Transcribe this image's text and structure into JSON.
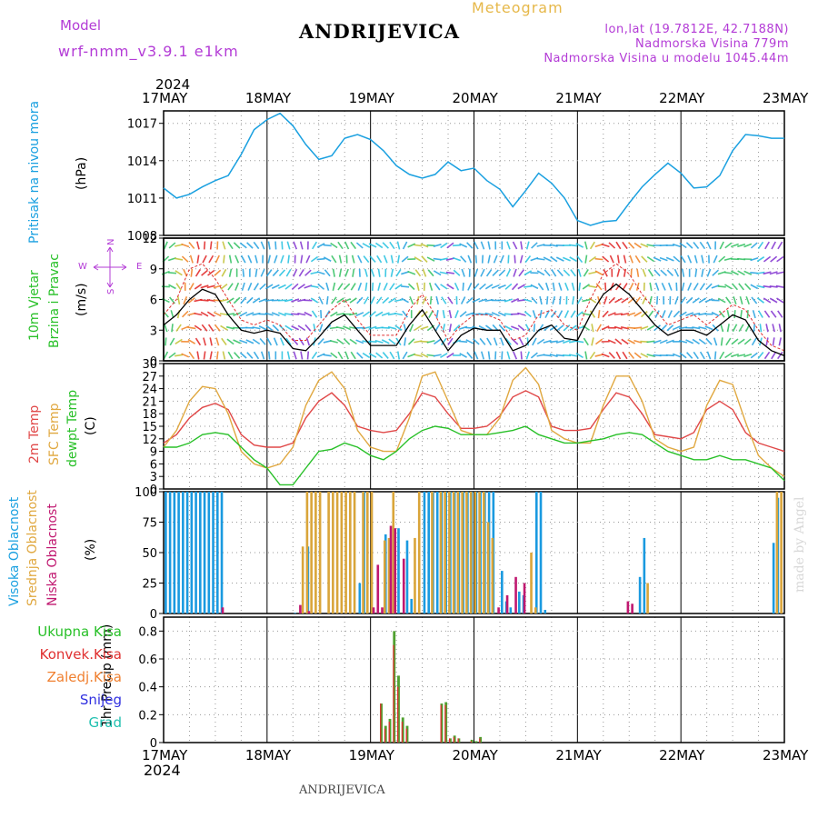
{
  "header": {
    "model_label": "Model",
    "model_name": "wrf-nmm_v3.9.1 e1km",
    "station": "ANDRIJEVICA",
    "meteogram": "Meteogram",
    "lonlat": "lon,lat (19.7812E, 42.7188N)",
    "elevation": "Nadmorska Visina 779m",
    "model_elevation": "Nadmorska Visina u modelu 1045.44m",
    "year_top": "2024",
    "year_bottom": "2024",
    "footer_station": "ANDRIJEVICA",
    "watermark": "made by Angel"
  },
  "colors": {
    "pressure": "#1aa0e0",
    "wind_speed": "#000000",
    "wind_gust": "#e03030",
    "temp2m": "#e04848",
    "sfc": "#e0a840",
    "dew": "#28c028",
    "high": "#1a9ae0",
    "mid": "#d9a53a",
    "low": "#c01870",
    "precip_total": "#50a030",
    "precip_conv": "#e03030"
  },
  "axis": {
    "day_labels": [
      "17MAY",
      "18MAY",
      "19MAY",
      "20MAY",
      "21MAY",
      "22MAY",
      "23MAY"
    ]
  },
  "panels": {
    "pressure": {
      "label": "Pritisak na nivou mora",
      "unit": "(hPa)"
    },
    "wind": {
      "label1": "10m Vjetar",
      "label2": "Brzina i Pravac",
      "unit": "(m/s)",
      "compass_n": "N",
      "compass_e": "E",
      "compass_w": "W",
      "compass_s": "S"
    },
    "temp": {
      "l1": "2m Temp",
      "l2": "SFC Temp",
      "l3": "dewpt Temp",
      "unit": "(C)"
    },
    "cloud": {
      "l1": "Visoka Oblacnost",
      "l2": "Srednja Oblacnost",
      "l3": "Niska Oblacnost",
      "unit": "(%)"
    },
    "precip": {
      "unit": "1hr Precip (mm)",
      "legend": [
        "Ukupna Kisa",
        "Konvek.Kisa",
        "Zaledj.Kisa",
        "Snijeg",
        "Grad"
      ],
      "legend_colors": [
        "#28c028",
        "#e03030",
        "#f08030",
        "#3030e0",
        "#20c0b0"
      ]
    }
  },
  "chart_data": [
    {
      "type": "line",
      "name": "pressure",
      "ylim": [
        1008,
        1018
      ],
      "yticks": [
        1008,
        1011,
        1014,
        1017
      ],
      "x": [
        0,
        3,
        6,
        9,
        12,
        15,
        18,
        21,
        24,
        27,
        30,
        33,
        36,
        39,
        42,
        45,
        48,
        51,
        54,
        57,
        60,
        63,
        66,
        69,
        72,
        75,
        78,
        81,
        84,
        87,
        90,
        93,
        96,
        99,
        102,
        105,
        108,
        111,
        114,
        117,
        120,
        123,
        126,
        129,
        132,
        135,
        138,
        141,
        144
      ],
      "values": [
        1011.8,
        1011.0,
        1011.3,
        1011.9,
        1012.4,
        1012.8,
        1014.5,
        1016.5,
        1017.3,
        1017.8,
        1016.8,
        1015.3,
        1014.1,
        1014.4,
        1015.8,
        1016.1,
        1015.7,
        1014.8,
        1013.6,
        1012.9,
        1012.6,
        1012.9,
        1013.9,
        1013.2,
        1013.4,
        1012.4,
        1011.7,
        1010.3,
        1011.6,
        1013.0,
        1012.2,
        1011.0,
        1009.2,
        1008.8,
        1009.1,
        1009.2,
        1010.6,
        1011.9,
        1012.9,
        1013.8,
        1013.0,
        1011.8,
        1011.9,
        1012.8,
        1014.8,
        1016.1,
        1016.0,
        1015.8,
        1015.8
      ]
    },
    {
      "type": "line",
      "name": "wind",
      "ylim": [
        0,
        12
      ],
      "yticks": [
        0,
        3,
        6,
        9,
        12
      ],
      "x": [
        0,
        3,
        6,
        9,
        12,
        15,
        18,
        21,
        24,
        27,
        30,
        33,
        36,
        39,
        42,
        45,
        48,
        51,
        54,
        57,
        60,
        63,
        66,
        69,
        72,
        75,
        78,
        81,
        84,
        87,
        90,
        93,
        96,
        99,
        102,
        105,
        108,
        111,
        114,
        117,
        120,
        123,
        126,
        129,
        132,
        135,
        138,
        141,
        144
      ],
      "speed": [
        3.5,
        4.5,
        6.0,
        7.0,
        6.5,
        4.5,
        3.0,
        2.7,
        3.0,
        2.7,
        1.2,
        1.0,
        2.3,
        3.8,
        4.5,
        3.0,
        1.5,
        1.5,
        1.5,
        3.5,
        5.0,
        3.0,
        1.0,
        2.5,
        3.2,
        3.0,
        3.0,
        1.0,
        1.5,
        3.0,
        3.5,
        2.2,
        2.0,
        4.5,
        6.5,
        7.5,
        6.5,
        5.0,
        3.5,
        2.5,
        3.0,
        3.0,
        2.5,
        3.5,
        4.5,
        4.0,
        2.0,
        1.0,
        0.5
      ],
      "gust": [
        4.5,
        6.0,
        9.0,
        9.5,
        8.0,
        6.0,
        4.0,
        3.5,
        4.0,
        3.5,
        2.0,
        2.0,
        3.5,
        5.0,
        6.0,
        4.0,
        2.5,
        2.5,
        2.5,
        5.0,
        6.5,
        4.5,
        2.0,
        3.5,
        4.5,
        4.5,
        4.0,
        2.0,
        2.5,
        4.5,
        5.0,
        3.5,
        3.0,
        6.0,
        8.5,
        9.5,
        8.5,
        6.5,
        5.0,
        3.5,
        4.0,
        4.5,
        3.5,
        4.5,
        5.5,
        5.0,
        3.0,
        1.5,
        1.0
      ]
    },
    {
      "type": "line",
      "name": "temperature",
      "ylim": [
        0,
        30
      ],
      "yticks": [
        0,
        3,
        6,
        9,
        12,
        15,
        18,
        21,
        24,
        27,
        30
      ],
      "x": [
        0,
        3,
        6,
        9,
        12,
        15,
        18,
        21,
        24,
        27,
        30,
        33,
        36,
        39,
        42,
        45,
        48,
        51,
        54,
        57,
        60,
        63,
        66,
        69,
        72,
        75,
        78,
        81,
        84,
        87,
        90,
        93,
        96,
        99,
        102,
        105,
        108,
        111,
        114,
        117,
        120,
        123,
        126,
        129,
        132,
        135,
        138,
        141,
        144
      ],
      "series": [
        {
          "name": "2m Temp",
          "values": [
            11,
            13,
            17,
            19.5,
            20.5,
            19,
            13,
            10.5,
            10,
            10,
            11,
            17,
            21,
            23,
            20,
            15,
            14,
            13.5,
            14,
            18,
            23,
            22,
            18,
            14.5,
            14.5,
            15,
            17.5,
            22,
            23.5,
            22,
            15,
            14,
            14,
            14.5,
            19,
            23,
            22,
            18,
            13,
            12.5,
            12,
            13.5,
            19,
            21,
            19,
            13.5,
            11,
            10,
            9
          ]
        },
        {
          "name": "SFC Temp",
          "values": [
            10,
            14,
            21,
            24.5,
            24,
            18,
            9,
            6,
            5,
            6,
            10,
            20,
            26,
            28,
            24,
            14,
            10,
            9,
            9,
            17,
            27,
            28,
            21,
            14,
            13,
            13,
            17,
            26,
            29,
            25,
            14,
            12,
            11,
            11,
            20,
            27,
            27,
            21,
            12,
            10,
            9,
            10,
            20,
            26,
            25,
            16,
            8,
            5,
            3
          ]
        },
        {
          "name": "dewpt Temp",
          "values": [
            10,
            10,
            11,
            13,
            13.5,
            13,
            10,
            7,
            5,
            1,
            1,
            5,
            9,
            9.5,
            11,
            10,
            8,
            7,
            9,
            12,
            14,
            15,
            14.5,
            13,
            13,
            13,
            13.5,
            14,
            15,
            13,
            12,
            11,
            11,
            11.5,
            12,
            13,
            13.5,
            13,
            11,
            9,
            8,
            7,
            7,
            8,
            7,
            7,
            6,
            5,
            2
          ]
        }
      ]
    },
    {
      "type": "bar",
      "name": "cloud",
      "ylim": [
        0,
        100
      ],
      "yticks": [
        0,
        25,
        50,
        75,
        100
      ],
      "bar_width_hours": 0.55,
      "high": [
        [
          0.5,
          100
        ],
        [
          1.5,
          100
        ],
        [
          2.5,
          100
        ],
        [
          3.5,
          100
        ],
        [
          4.5,
          100
        ],
        [
          5.5,
          100
        ],
        [
          6.5,
          100
        ],
        [
          7.5,
          100
        ],
        [
          8.5,
          100
        ],
        [
          9.5,
          100
        ],
        [
          10.5,
          100
        ],
        [
          11.5,
          100
        ],
        [
          12.5,
          100
        ],
        [
          13.5,
          100
        ],
        [
          30.5,
          0.5
        ],
        [
          33.5,
          55
        ],
        [
          45.5,
          25
        ],
        [
          46.5,
          100
        ],
        [
          51.5,
          65
        ],
        [
          54.5,
          70
        ],
        [
          56.5,
          60
        ],
        [
          57.5,
          12
        ],
        [
          60.5,
          100
        ],
        [
          61.5,
          100
        ],
        [
          62.5,
          100
        ],
        [
          63.5,
          100
        ],
        [
          64.5,
          100
        ],
        [
          65.5,
          100
        ],
        [
          66.5,
          100
        ],
        [
          67.5,
          100
        ],
        [
          68.5,
          100
        ],
        [
          69.5,
          100
        ],
        [
          70.5,
          100
        ],
        [
          71.5,
          100
        ],
        [
          72.5,
          100
        ],
        [
          73.5,
          100
        ],
        [
          74.5,
          100
        ],
        [
          75.5,
          100
        ],
        [
          76.5,
          100
        ],
        [
          78.5,
          35
        ],
        [
          79.5,
          10
        ],
        [
          80.5,
          5
        ],
        [
          82.5,
          18
        ],
        [
          83.5,
          15
        ],
        [
          86.5,
          100
        ],
        [
          87.5,
          100
        ],
        [
          88.5,
          3
        ],
        [
          110.5,
          30
        ],
        [
          111.5,
          62
        ],
        [
          141.5,
          58
        ],
        [
          142.5,
          95
        ]
      ],
      "mid": [
        [
          32.5,
          55
        ],
        [
          33.5,
          100
        ],
        [
          34.5,
          100
        ],
        [
          35.5,
          100
        ],
        [
          36.5,
          100
        ],
        [
          38.5,
          100
        ],
        [
          39.5,
          100
        ],
        [
          40.5,
          100
        ],
        [
          41.5,
          100
        ],
        [
          42.5,
          100
        ],
        [
          43.5,
          100
        ],
        [
          44.5,
          100
        ],
        [
          46.5,
          100
        ],
        [
          47.5,
          100
        ],
        [
          48.5,
          100
        ],
        [
          51.5,
          60
        ],
        [
          52.5,
          62
        ],
        [
          53.5,
          100
        ],
        [
          58.5,
          62
        ],
        [
          59.5,
          100
        ],
        [
          62.5,
          100
        ],
        [
          64.5,
          100
        ],
        [
          65.5,
          100
        ],
        [
          66.5,
          100
        ],
        [
          67.5,
          100
        ],
        [
          68.5,
          100
        ],
        [
          69.5,
          100
        ],
        [
          70.5,
          100
        ],
        [
          71.5,
          100
        ],
        [
          72.5,
          100
        ],
        [
          73.5,
          100
        ],
        [
          74.5,
          100
        ],
        [
          75.5,
          75
        ],
        [
          76.5,
          62
        ],
        [
          85.5,
          50
        ],
        [
          86.5,
          5
        ],
        [
          112.5,
          25
        ],
        [
          142.5,
          100
        ],
        [
          143.5,
          100
        ]
      ],
      "low": [
        [
          13.5,
          5
        ],
        [
          31.5,
          7
        ],
        [
          33.5,
          2
        ],
        [
          48.5,
          5
        ],
        [
          49.5,
          40
        ],
        [
          50.5,
          5
        ],
        [
          52.5,
          72
        ],
        [
          53.5,
          70
        ],
        [
          55.5,
          45
        ],
        [
          77.5,
          5
        ],
        [
          79.5,
          15
        ],
        [
          81.5,
          30
        ],
        [
          83.5,
          25
        ],
        [
          107.5,
          10
        ],
        [
          108.5,
          8
        ]
      ]
    },
    {
      "type": "bar",
      "name": "precip",
      "ylim": [
        0,
        0.9
      ],
      "yticks": [
        0,
        0.2,
        0.4,
        0.6,
        0.8
      ],
      "bar_width_hours": 0.6,
      "total": [
        [
          50.5,
          0.28
        ],
        [
          51.5,
          0.12
        ],
        [
          52.5,
          0.17
        ],
        [
          53.5,
          0.8
        ],
        [
          54.5,
          0.48
        ],
        [
          55.5,
          0.18
        ],
        [
          56.5,
          0.12
        ],
        [
          64.5,
          0.28
        ],
        [
          65.5,
          0.29
        ],
        [
          66.5,
          0.03
        ],
        [
          67.5,
          0.05
        ],
        [
          68.5,
          0.03
        ],
        [
          71.5,
          0.02
        ],
        [
          72.5,
          0.01
        ],
        [
          73.5,
          0.04
        ]
      ],
      "convective": [
        [
          50.5,
          0.28
        ],
        [
          51.5,
          0.1
        ],
        [
          52.5,
          0.15
        ],
        [
          53.5,
          0.7
        ],
        [
          54.5,
          0.4
        ],
        [
          55.5,
          0.15
        ],
        [
          56.5,
          0.1
        ],
        [
          64.5,
          0.27
        ],
        [
          65.5,
          0.27
        ],
        [
          66.5,
          0.03
        ],
        [
          67.5,
          0.04
        ],
        [
          68.5,
          0.03
        ],
        [
          71.5,
          0.01
        ],
        [
          73.5,
          0.03
        ]
      ]
    }
  ]
}
